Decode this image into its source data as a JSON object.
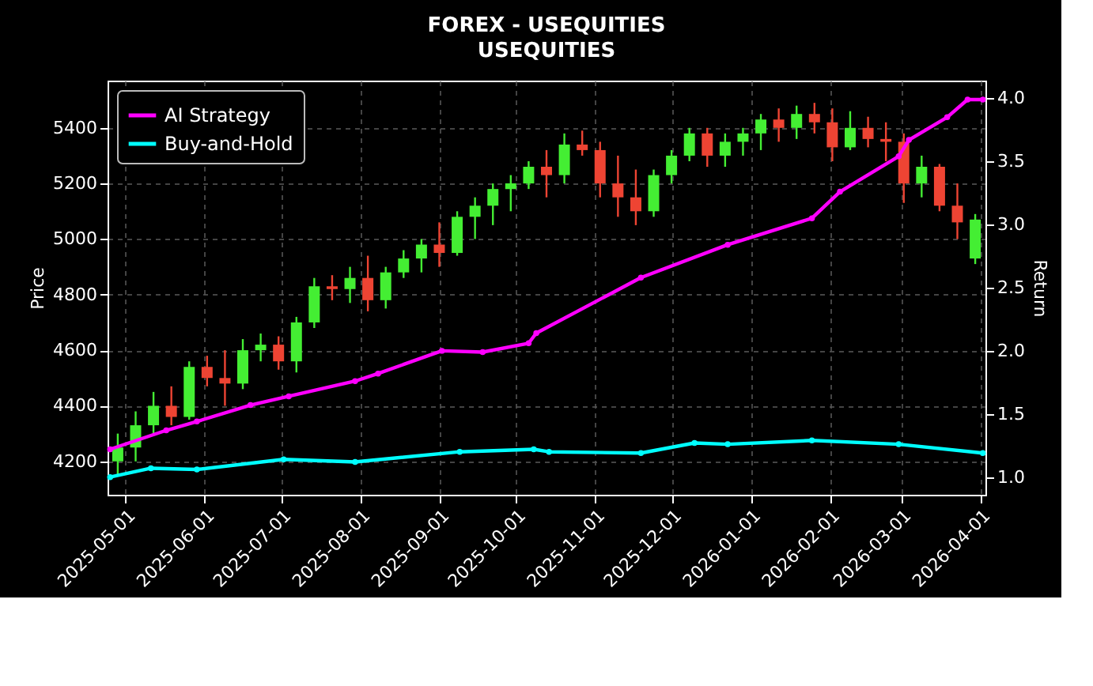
{
  "chart_data": {
    "type": "candlestick",
    "title": "FOREX - USEQUITIES",
    "subtitle": "USEQUITIES",
    "ylabel": "Price",
    "y2label": "Return",
    "x": [
      "2025-04-28",
      "2025-05-05",
      "2025-05-12",
      "2025-05-19",
      "2025-05-26",
      "2025-06-02",
      "2025-06-09",
      "2025-06-16",
      "2025-06-23",
      "2025-06-30",
      "2025-07-07",
      "2025-07-14",
      "2025-07-21",
      "2025-07-28",
      "2025-08-04",
      "2025-08-11",
      "2025-08-18",
      "2025-08-25",
      "2025-09-01",
      "2025-09-08",
      "2025-09-15",
      "2025-09-22",
      "2025-09-29",
      "2025-10-06",
      "2025-10-13",
      "2025-10-20",
      "2025-10-27",
      "2025-11-03",
      "2025-11-10",
      "2025-11-17",
      "2025-11-24",
      "2025-12-01",
      "2025-12-08",
      "2025-12-15",
      "2025-12-22",
      "2025-12-29",
      "2026-01-05",
      "2026-01-12",
      "2026-01-19",
      "2026-01-26",
      "2026-02-02",
      "2026-02-09",
      "2026-02-16",
      "2026-02-23",
      "2026-03-02",
      "2026-03-09",
      "2026-03-16",
      "2026-03-23",
      "2026-03-30"
    ],
    "ohlc": [
      [
        4200,
        4300,
        4150,
        4250
      ],
      [
        4250,
        4380,
        4200,
        4330
      ],
      [
        4330,
        4450,
        4300,
        4400
      ],
      [
        4400,
        4470,
        4330,
        4360
      ],
      [
        4360,
        4560,
        4350,
        4540
      ],
      [
        4540,
        4580,
        4470,
        4500
      ],
      [
        4500,
        4600,
        4400,
        4480
      ],
      [
        4480,
        4640,
        4460,
        4600
      ],
      [
        4600,
        4660,
        4560,
        4620
      ],
      [
        4620,
        4650,
        4530,
        4560
      ],
      [
        4560,
        4720,
        4520,
        4700
      ],
      [
        4700,
        4860,
        4680,
        4830
      ],
      [
        4830,
        4870,
        4780,
        4820
      ],
      [
        4820,
        4900,
        4770,
        4860
      ],
      [
        4860,
        4940,
        4740,
        4780
      ],
      [
        4780,
        4900,
        4750,
        4880
      ],
      [
        4880,
        4960,
        4860,
        4930
      ],
      [
        4930,
        5000,
        4880,
        4980
      ],
      [
        4980,
        5060,
        4900,
        4950
      ],
      [
        4950,
        5100,
        4940,
        5080
      ],
      [
        5080,
        5150,
        5000,
        5120
      ],
      [
        5120,
        5200,
        5050,
        5180
      ],
      [
        5180,
        5230,
        5100,
        5200
      ],
      [
        5200,
        5280,
        5180,
        5260
      ],
      [
        5260,
        5320,
        5150,
        5230
      ],
      [
        5230,
        5380,
        5200,
        5340
      ],
      [
        5340,
        5390,
        5300,
        5320
      ],
      [
        5320,
        5350,
        5150,
        5200
      ],
      [
        5200,
        5300,
        5080,
        5150
      ],
      [
        5150,
        5250,
        5050,
        5100
      ],
      [
        5100,
        5250,
        5080,
        5230
      ],
      [
        5230,
        5320,
        5200,
        5300
      ],
      [
        5300,
        5400,
        5280,
        5380
      ],
      [
        5380,
        5400,
        5260,
        5300
      ],
      [
        5300,
        5380,
        5260,
        5350
      ],
      [
        5350,
        5400,
        5300,
        5380
      ],
      [
        5380,
        5450,
        5320,
        5430
      ],
      [
        5430,
        5470,
        5350,
        5400
      ],
      [
        5400,
        5480,
        5360,
        5450
      ],
      [
        5450,
        5490,
        5380,
        5420
      ],
      [
        5420,
        5470,
        5280,
        5330
      ],
      [
        5330,
        5460,
        5320,
        5400
      ],
      [
        5400,
        5440,
        5330,
        5360
      ],
      [
        5360,
        5420,
        5280,
        5350
      ],
      [
        5350,
        5380,
        5130,
        5200
      ],
      [
        5200,
        5300,
        5150,
        5260
      ],
      [
        5260,
        5270,
        5100,
        5120
      ],
      [
        5120,
        5200,
        5000,
        5060
      ],
      [
        4930,
        5090,
        4910,
        5070
      ]
    ],
    "series": [
      {
        "name": "AI Strategy",
        "type": "line",
        "axis": "y2",
        "color": "#ff00ff",
        "x": [
          "2025-04-25",
          "2025-05-17",
          "2025-05-29",
          "2025-06-19",
          "2025-07-04",
          "2025-07-30",
          "2025-08-08",
          "2025-09-02",
          "2025-09-18",
          "2025-10-06",
          "2025-10-09",
          "2025-11-19",
          "2025-12-23",
          "2026-01-25",
          "2026-02-05",
          "2026-02-28",
          "2026-03-04",
          "2026-03-19",
          "2026-03-27",
          "2026-04-02"
        ],
        "values": [
          1.22,
          1.37,
          1.44,
          1.57,
          1.64,
          1.76,
          1.82,
          2.0,
          1.99,
          2.06,
          2.14,
          2.58,
          2.84,
          3.05,
          3.26,
          3.54,
          3.67,
          3.85,
          3.99,
          3.99
        ]
      },
      {
        "name": "Buy-and-Hold",
        "type": "line",
        "axis": "y2",
        "color": "#00ffff",
        "x": [
          "2025-04-25",
          "2025-05-11",
          "2025-05-29",
          "2025-07-02",
          "2025-07-30",
          "2025-09-09",
          "2025-10-08",
          "2025-10-14",
          "2025-11-19",
          "2025-12-10",
          "2025-12-23",
          "2026-01-25",
          "2026-02-28",
          "2026-04-02"
        ],
        "values": [
          1.0,
          1.07,
          1.06,
          1.14,
          1.12,
          1.2,
          1.22,
          1.2,
          1.19,
          1.27,
          1.26,
          1.29,
          1.26,
          1.19
        ]
      }
    ],
    "xlim": [
      "2025-04-24",
      "2026-04-03"
    ],
    "xticks": [
      "2025-05-01",
      "2025-06-01",
      "2025-07-01",
      "2025-08-01",
      "2025-09-01",
      "2025-10-01",
      "2025-11-01",
      "2025-12-01",
      "2026-01-01",
      "2026-02-01",
      "2026-03-01",
      "2026-04-01"
    ],
    "ylim": [
      4080,
      5570
    ],
    "yticks": [
      4200,
      4400,
      4600,
      4800,
      5000,
      5200,
      5400
    ],
    "y2lim": [
      0.86,
      4.14
    ],
    "y2ticks": [
      {
        "value": 1.0,
        "label": "1.0"
      },
      {
        "value": 1.5,
        "label": "1.5"
      },
      {
        "value": 2.0,
        "label": "2.0"
      },
      {
        "value": 2.5,
        "label": "2.5"
      },
      {
        "value": 3.0,
        "label": "3.0"
      },
      {
        "value": 3.5,
        "label": "3.5"
      },
      {
        "value": 4.0,
        "label": "4.0"
      }
    ],
    "grid": true,
    "legend": "top left",
    "marker": "circle",
    "line_style": "solid"
  }
}
